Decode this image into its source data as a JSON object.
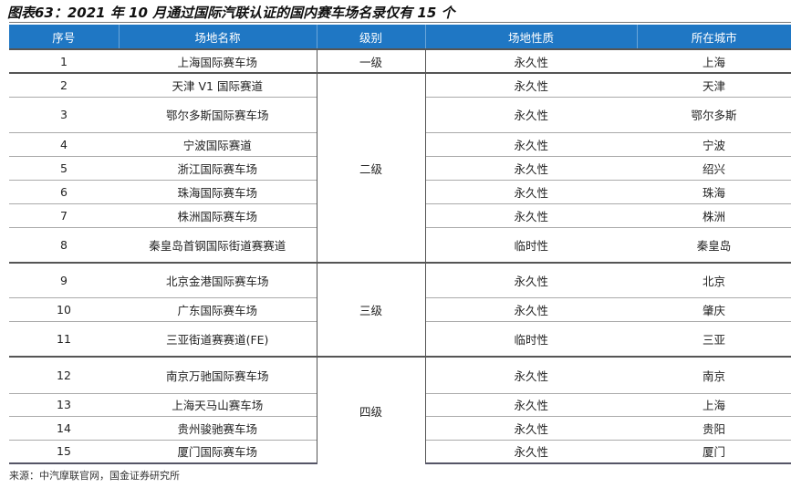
{
  "title": "图表63：2021 年 10 月通过国际汽联认证的国内赛车场名录仅有 15 个",
  "table": {
    "headers": [
      "序号",
      "场地名称",
      "级别",
      "场地性质",
      "所在城市"
    ],
    "header_color": "#1f77c4",
    "groups": [
      {
        "level": "一级",
        "rows": [
          {
            "no": "1",
            "name": "上海国际赛车场",
            "type": "永久性",
            "city": "上海"
          }
        ]
      },
      {
        "level": "二级",
        "rows": [
          {
            "no": "2",
            "name": "天津 V1 国际赛道",
            "type": "永久性",
            "city": "天津"
          },
          {
            "no": "3",
            "name": "鄂尔多斯国际赛车场",
            "type": "永久性",
            "city": "鄂尔多斯"
          },
          {
            "no": "4",
            "name": "宁波国际赛道",
            "type": "永久性",
            "city": "宁波"
          },
          {
            "no": "5",
            "name": "浙江国际赛车场",
            "type": "永久性",
            "city": "绍兴"
          },
          {
            "no": "6",
            "name": "珠海国际赛车场",
            "type": "永久性",
            "city": "珠海"
          },
          {
            "no": "7",
            "name": "株洲国际赛车场",
            "type": "永久性",
            "city": "株洲"
          },
          {
            "no": "8",
            "name": "秦皇岛首钢国际街道赛赛道",
            "type": "临时性",
            "city": "秦皇岛"
          }
        ]
      },
      {
        "level": "三级",
        "rows": [
          {
            "no": "9",
            "name": "北京金港国际赛车场",
            "type": "永久性",
            "city": "北京"
          },
          {
            "no": "10",
            "name": "广东国际赛车场",
            "type": "永久性",
            "city": "肇庆"
          },
          {
            "no": "11",
            "name": "三亚街道赛赛道(FE)",
            "type": "临时性",
            "city": "三亚"
          }
        ]
      },
      {
        "level": "四级",
        "rows": [
          {
            "no": "12",
            "name": "南京万驰国际赛车场",
            "type": "永久性",
            "city": "南京"
          },
          {
            "no": "13",
            "name": "上海天马山赛车场",
            "type": "永久性",
            "city": "上海"
          },
          {
            "no": "14",
            "name": "贵州骏驰赛车场",
            "type": "永久性",
            "city": "贵阳"
          },
          {
            "no": "15",
            "name": "厦门国际赛车场",
            "type": "永久性",
            "city": "厦门"
          }
        ]
      }
    ]
  },
  "source": "来源：中汽摩联官网，国金证券研究所"
}
